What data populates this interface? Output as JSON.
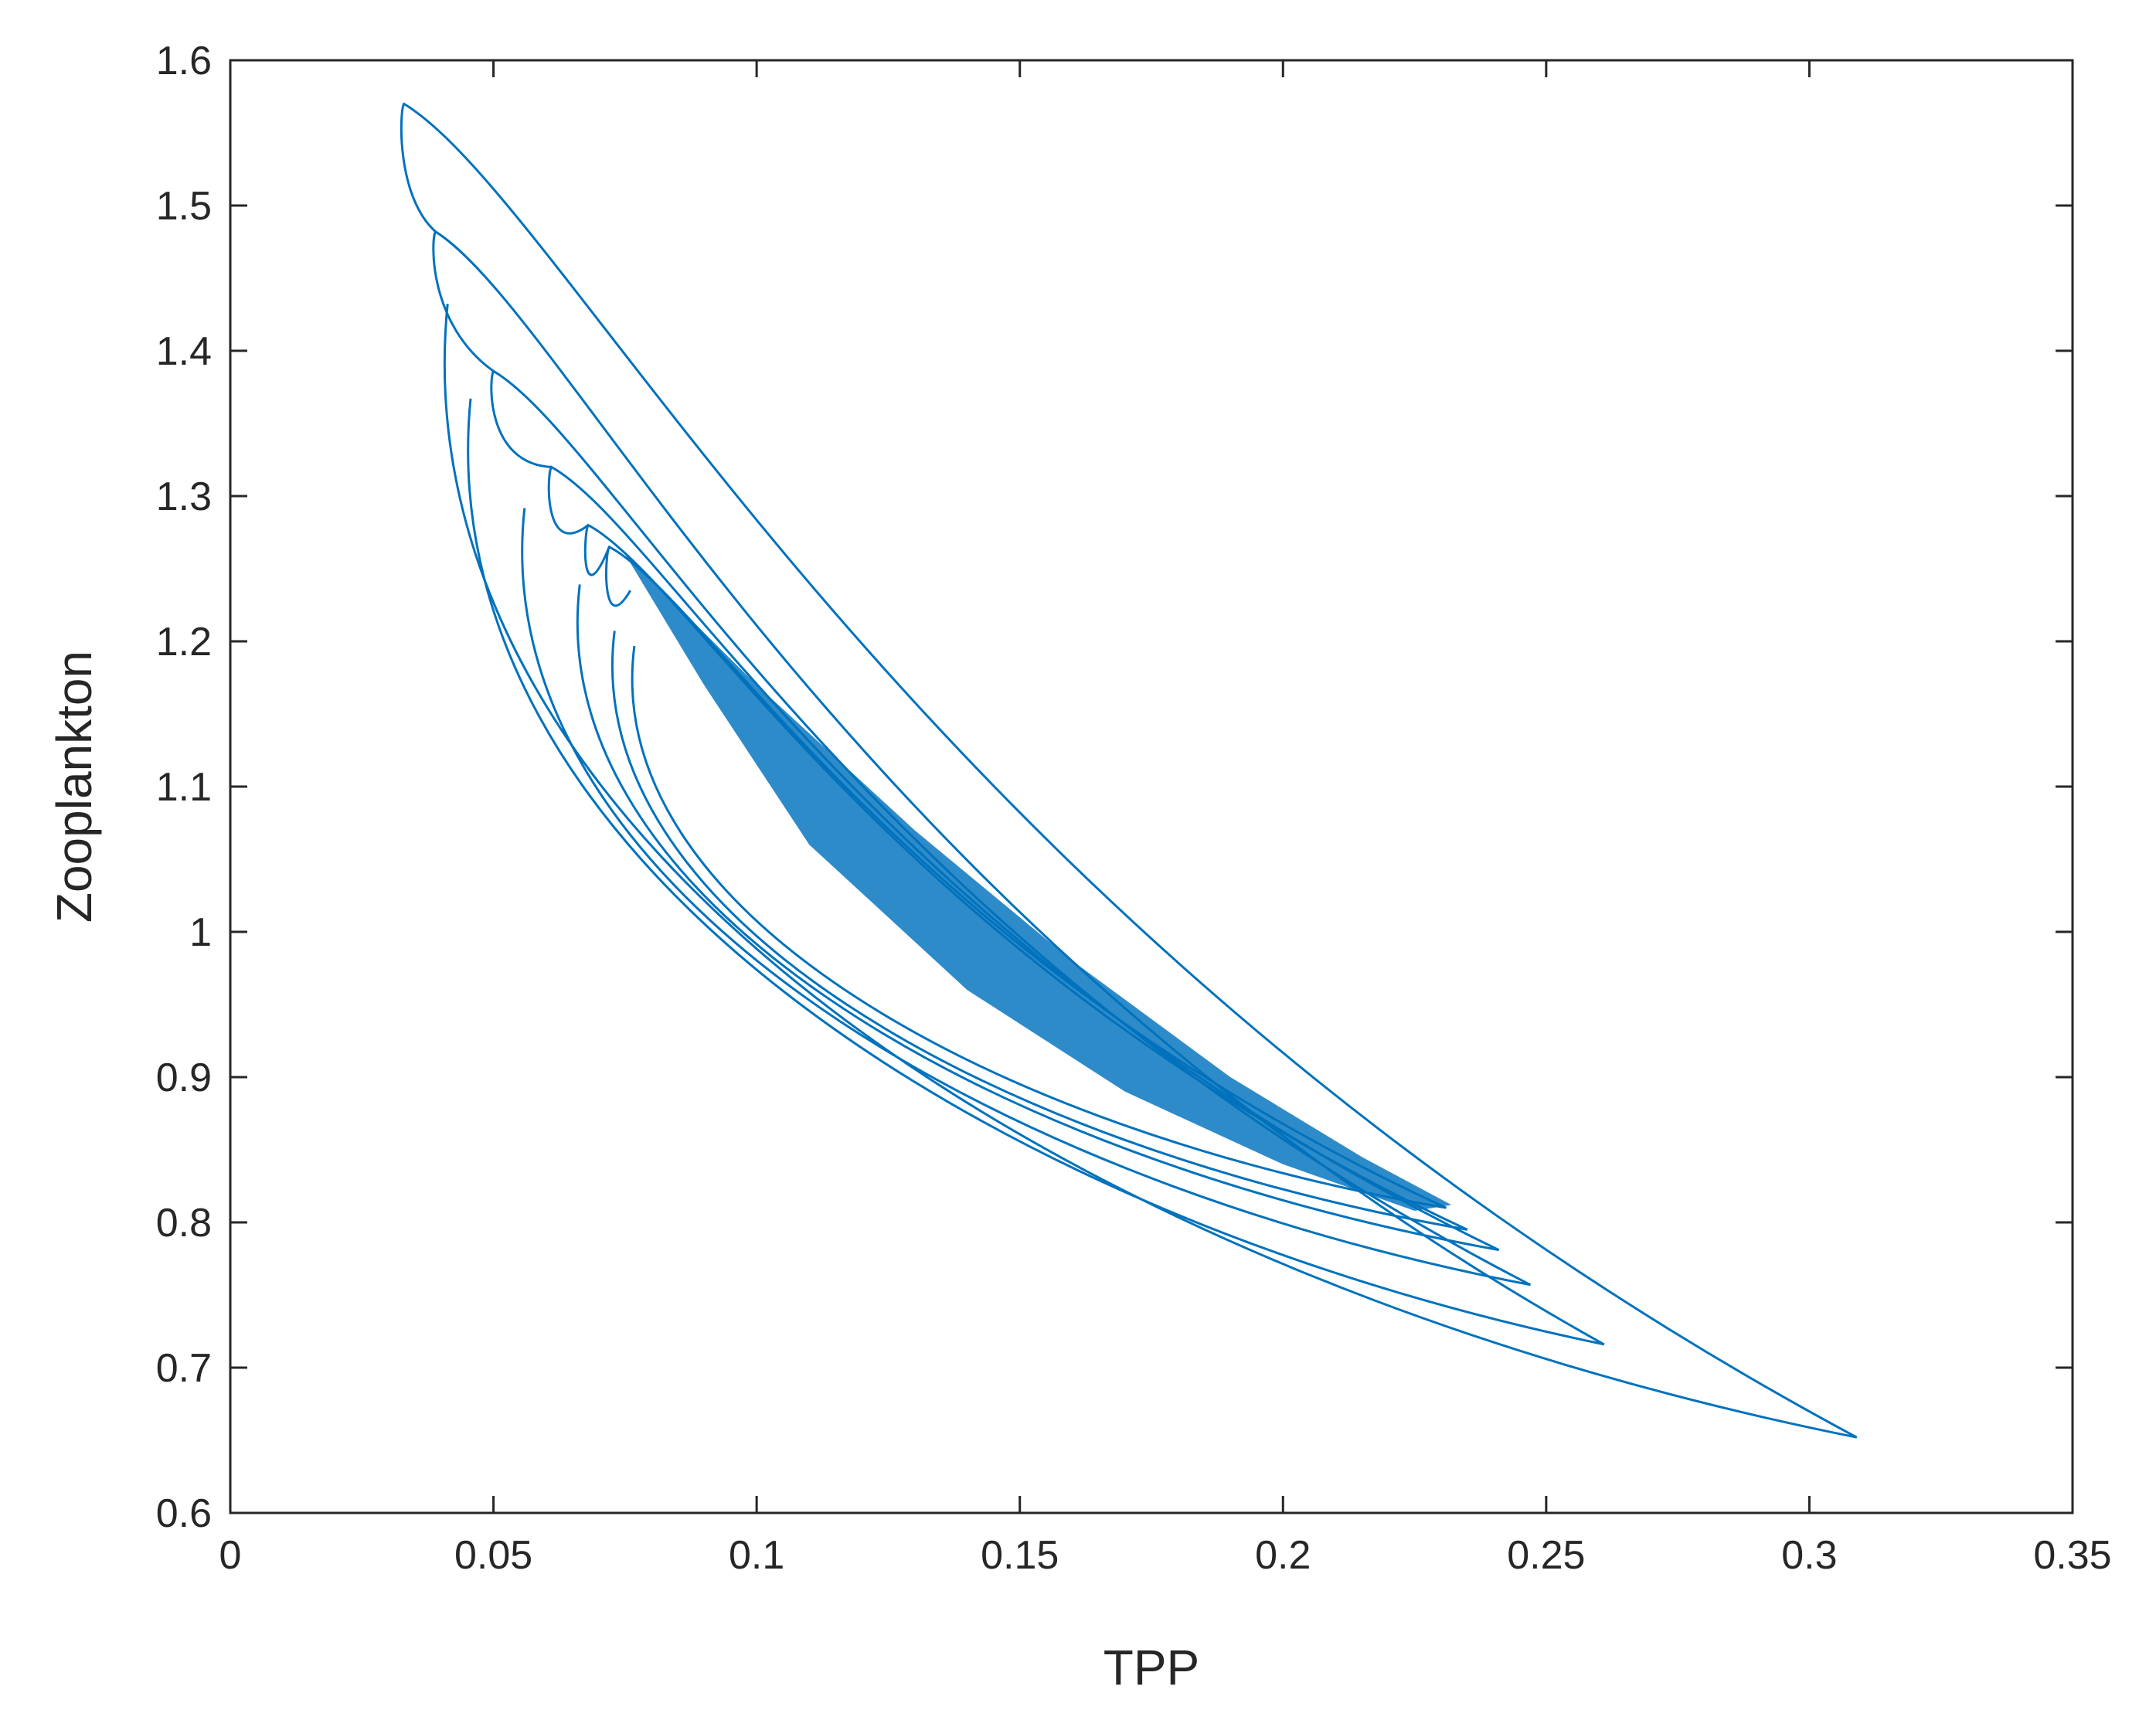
{
  "chart_data": {
    "type": "line",
    "title": "",
    "xlabel": "TPP",
    "ylabel": "Zooplankton",
    "xlim": [
      0,
      0.35
    ],
    "ylim": [
      0.6,
      1.6
    ],
    "xticks": [
      0,
      0.05,
      0.1,
      0.15,
      0.2,
      0.25,
      0.3,
      0.35
    ],
    "xtick_labels": [
      "0",
      "0.05",
      "0.1",
      "0.15",
      "0.2",
      "0.25",
      "0.3",
      "0.35"
    ],
    "yticks": [
      0.6,
      0.7,
      0.8,
      0.9,
      1.0,
      1.1,
      1.2,
      1.3,
      1.4,
      1.5,
      1.6
    ],
    "ytick_labels": [
      "0.6",
      "0.7",
      "0.8",
      "0.9",
      "1",
      "1.1",
      "1.2",
      "1.3",
      "1.4",
      "1.5",
      "1.6"
    ],
    "grid": false,
    "box": true,
    "colors": {
      "line": "#0072BD",
      "axes": "#262626",
      "background": "#ffffff"
    },
    "series": [
      {
        "values_description_free": true,
        "loops": [
          {
            "peak": [
              0.033,
              1.57
            ],
            "tip": [
              0.309,
              0.652
            ]
          },
          {
            "peak": [
              0.039,
              1.482
            ],
            "tip": [
              0.261,
              0.716
            ]
          },
          {
            "peak": [
              0.05,
              1.386
            ],
            "tip": [
              0.247,
              0.757
            ]
          },
          {
            "peak": [
              0.061,
              1.32
            ],
            "tip": [
              0.241,
              0.781
            ]
          },
          {
            "peak": [
              0.068,
              1.28
            ],
            "tip": [
              0.235,
              0.795
            ]
          },
          {
            "peak": [
              0.072,
              1.265
            ],
            "tip": [
              0.231,
              0.81
            ]
          }
        ],
        "attractor_band": {
          "left_edge": [
            [
              0.075,
              1.26
            ],
            [
              0.09,
              1.17
            ],
            [
              0.11,
              1.06
            ],
            [
              0.14,
              0.96
            ],
            [
              0.17,
              0.89
            ],
            [
              0.2,
              0.84
            ],
            [
              0.225,
              0.808
            ]
          ],
          "right_edge": [
            [
              0.075,
              1.26
            ],
            [
              0.1,
              1.17
            ],
            [
              0.13,
              1.07
            ],
            [
              0.16,
              0.98
            ],
            [
              0.19,
              0.9
            ],
            [
              0.215,
              0.845
            ],
            [
              0.232,
              0.812
            ]
          ]
        }
      }
    ]
  }
}
